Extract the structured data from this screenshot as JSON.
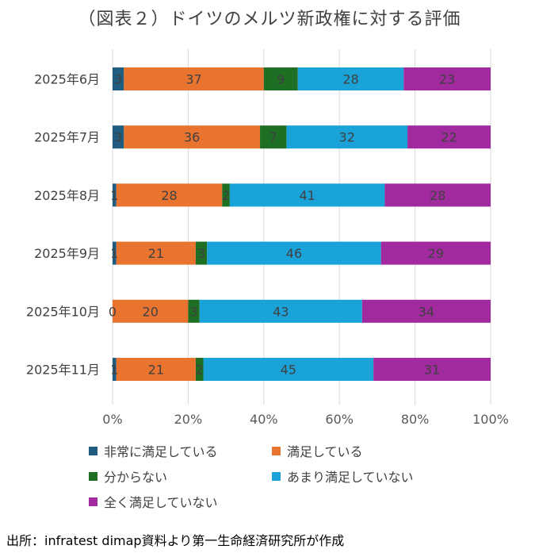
{
  "title": "（図表２）ドイツのメルツ新政権に対する評価",
  "source": "出所：infratest dimap資料より第一生命経済研究所が作成",
  "chart_data": {
    "type": "bar",
    "orientation": "horizontal",
    "stacked": "percent",
    "categories": [
      "2025年6月",
      "2025年7月",
      "2025年8月",
      "2025年9月",
      "2025年10月",
      "2025年11月"
    ],
    "series": [
      {
        "name": "非常に満足している",
        "color": "#1f5c80",
        "values": [
          3,
          3,
          1,
          1,
          0,
          1
        ]
      },
      {
        "name": "満足している",
        "color": "#e87430",
        "values": [
          37,
          36,
          28,
          21,
          20,
          21
        ]
      },
      {
        "name": "分からない",
        "color": "#1e6e23",
        "values": [
          9,
          7,
          2,
          3,
          3,
          2
        ]
      },
      {
        "name": "あまり満足していない",
        "color": "#19a3d8",
        "values": [
          28,
          32,
          41,
          46,
          43,
          45
        ]
      },
      {
        "name": "全く満足していない",
        "color": "#a02a9e",
        "values": [
          23,
          22,
          28,
          29,
          34,
          31
        ]
      }
    ],
    "data_labels": [
      [
        "3",
        "37",
        "9",
        "28",
        "23"
      ],
      [
        "3",
        "36",
        "7",
        "32",
        "22"
      ],
      [
        "1",
        "28",
        "2",
        "41",
        "28"
      ],
      [
        "1",
        "21",
        "3",
        "46",
        "29"
      ],
      [
        "0",
        "20",
        "3",
        "43",
        "34"
      ],
      [
        "1",
        "21",
        "2",
        "45",
        "31"
      ]
    ],
    "xticks": [
      "0%",
      "20%",
      "40%",
      "60%",
      "80%",
      "100%"
    ],
    "xlim": [
      0,
      100
    ],
    "grid": true,
    "legend_position": "bottom"
  }
}
